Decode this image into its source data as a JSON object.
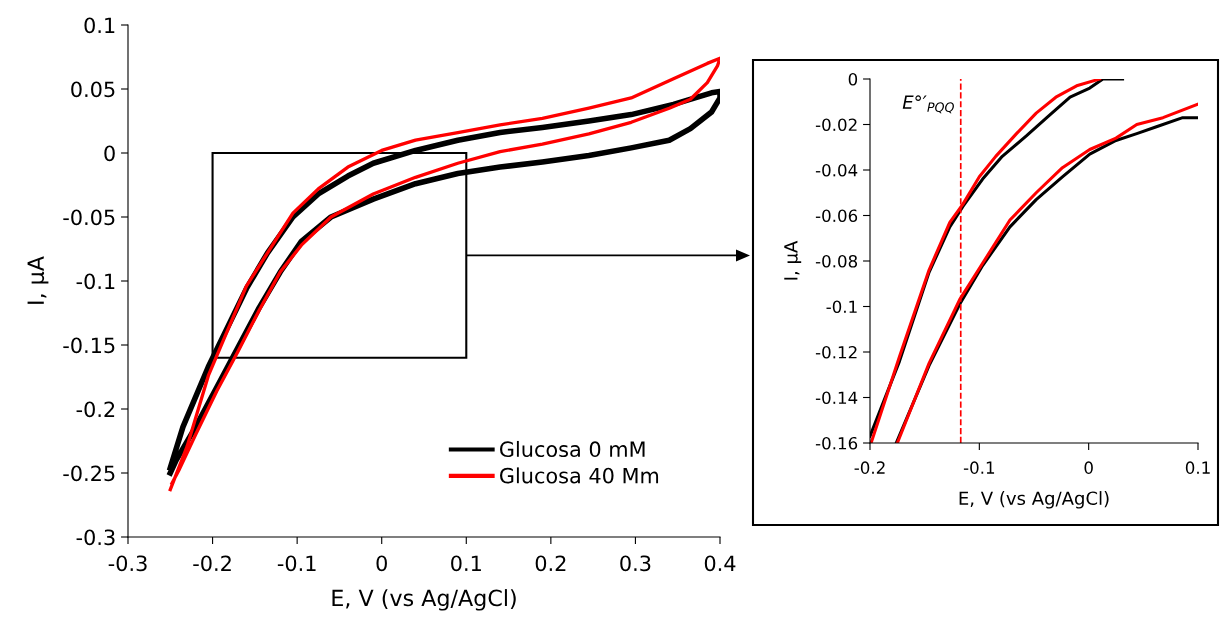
{
  "chart_data": [
    {
      "type": "line",
      "xlabel": "E, V (vs Ag/AgCl)",
      "ylabel": "I, µA",
      "xlim": [
        -0.3,
        0.4
      ],
      "xticks": [
        -0.3,
        -0.2,
        -0.1,
        0,
        0.1,
        0.2,
        0.3,
        0.4
      ],
      "ylim": [
        -0.3,
        0.1
      ],
      "yticks": [
        -0.3,
        -0.25,
        -0.2,
        -0.15,
        -0.1,
        -0.05,
        0,
        0.05,
        0.1
      ],
      "grid": false,
      "legend": "bottom right",
      "marker": "none",
      "line_style": "solid",
      "series": [
        {
          "name": "Glucosa 0 mM",
          "color": "#000000",
          "x": [
            -0.25,
            -0.235,
            -0.205,
            -0.16,
            -0.135,
            -0.105,
            -0.075,
            -0.04,
            -0.01,
            0.04,
            0.09,
            0.14,
            0.19,
            0.245,
            0.295,
            0.345,
            0.39,
            0.4,
            0.4,
            0.39,
            0.365,
            0.34,
            0.295,
            0.245,
            0.19,
            0.14,
            0.09,
            0.04,
            -0.01,
            -0.06,
            -0.095,
            -0.12,
            -0.145,
            -0.17,
            -0.195,
            -0.22,
            -0.243,
            -0.25
          ],
          "values": [
            -0.246,
            -0.214,
            -0.167,
            -0.106,
            -0.078,
            -0.05,
            -0.032,
            -0.018,
            -0.008,
            0.002,
            0.01,
            0.016,
            0.02,
            0.025,
            0.03,
            0.038,
            0.047,
            0.048,
            0.043,
            0.032,
            0.019,
            0.01,
            0.004,
            -0.002,
            -0.007,
            -0.011,
            -0.016,
            -0.024,
            -0.036,
            -0.05,
            -0.069,
            -0.093,
            -0.121,
            -0.152,
            -0.183,
            -0.214,
            -0.24,
            -0.25
          ]
        },
        {
          "name": "Glucosa 40 Mm",
          "color": "#ff0000",
          "x": [
            -0.25,
            -0.23,
            -0.205,
            -0.16,
            -0.135,
            -0.105,
            -0.075,
            -0.04,
            0.0,
            0.04,
            0.09,
            0.14,
            0.19,
            0.245,
            0.295,
            0.345,
            0.385,
            0.4,
            0.397,
            0.385,
            0.365,
            0.34,
            0.295,
            0.245,
            0.19,
            0.14,
            0.09,
            0.04,
            -0.01,
            -0.06,
            -0.095,
            -0.12,
            -0.145,
            -0.17,
            -0.195,
            -0.22,
            -0.24,
            -0.248
          ],
          "values": [
            -0.263,
            -0.229,
            -0.174,
            -0.104,
            -0.078,
            -0.047,
            -0.028,
            -0.011,
            0.002,
            0.01,
            0.016,
            0.022,
            0.027,
            0.035,
            0.043,
            0.058,
            0.07,
            0.074,
            0.068,
            0.055,
            0.042,
            0.035,
            0.024,
            0.015,
            0.007,
            0.001,
            -0.008,
            -0.019,
            -0.032,
            -0.05,
            -0.072,
            -0.093,
            -0.123,
            -0.155,
            -0.186,
            -0.22,
            -0.248,
            -0.258
          ]
        }
      ]
    },
    {
      "type": "line",
      "xlabel": "E, V (vs Ag/AgCl)",
      "ylabel": "I, µA",
      "xlim": [
        -0.2,
        0.1
      ],
      "xticks": [
        -0.2,
        -0.1,
        0,
        0.1
      ],
      "ylim": [
        -0.16,
        0
      ],
      "yticks": [
        -0.16,
        -0.14,
        -0.12,
        -0.1,
        -0.08,
        -0.06,
        -0.04,
        -0.02,
        0
      ],
      "grid": false,
      "legend": false,
      "marker": "none",
      "line_style": "solid",
      "ref_lines": [
        {
          "axis": "x",
          "value": -0.117,
          "label": "E°′$_{PQQ}$",
          "color": "#ff0000",
          "line_style": "dashed"
        }
      ],
      "series": [
        {
          "color": "#000000",
          "x": [
            -0.2,
            -0.173,
            -0.146,
            -0.127,
            -0.115,
            -0.097,
            -0.079,
            -0.057,
            -0.036,
            -0.017,
            0.001,
            0.013,
            0.031
          ],
          "values": [
            -0.157,
            -0.124,
            -0.085,
            -0.065,
            -0.056,
            -0.044,
            -0.034,
            -0.025,
            -0.016,
            -0.008,
            -0.004,
            0.0,
            0.0
          ]
        },
        {
          "color": "#ff0000",
          "x": [
            -0.199,
            -0.173,
            -0.146,
            -0.127,
            -0.115,
            -0.1,
            -0.085,
            -0.066,
            -0.048,
            -0.03,
            -0.011,
            0.01
          ],
          "values": [
            -0.16,
            -0.122,
            -0.084,
            -0.063,
            -0.055,
            -0.043,
            -0.034,
            -0.024,
            -0.015,
            -0.008,
            -0.003,
            0.0
          ]
        },
        {
          "color": "#000000",
          "x": [
            -0.176,
            -0.146,
            -0.118,
            -0.097,
            -0.072,
            -0.048,
            -0.024,
            0.001,
            0.025,
            0.044,
            0.062,
            0.086,
            0.1
          ],
          "values": [
            -0.16,
            -0.126,
            -0.099,
            -0.082,
            -0.065,
            -0.053,
            -0.043,
            -0.033,
            -0.027,
            -0.024,
            -0.021,
            -0.017,
            -0.017
          ]
        },
        {
          "color": "#ff0000",
          "x": [
            -0.175,
            -0.146,
            -0.118,
            -0.097,
            -0.072,
            -0.048,
            -0.024,
            0.001,
            0.025,
            0.044,
            0.068,
            0.1
          ],
          "values": [
            -0.16,
            -0.125,
            -0.097,
            -0.081,
            -0.062,
            -0.05,
            -0.039,
            -0.031,
            -0.026,
            -0.02,
            -0.017,
            -0.011
          ]
        }
      ]
    }
  ]
}
